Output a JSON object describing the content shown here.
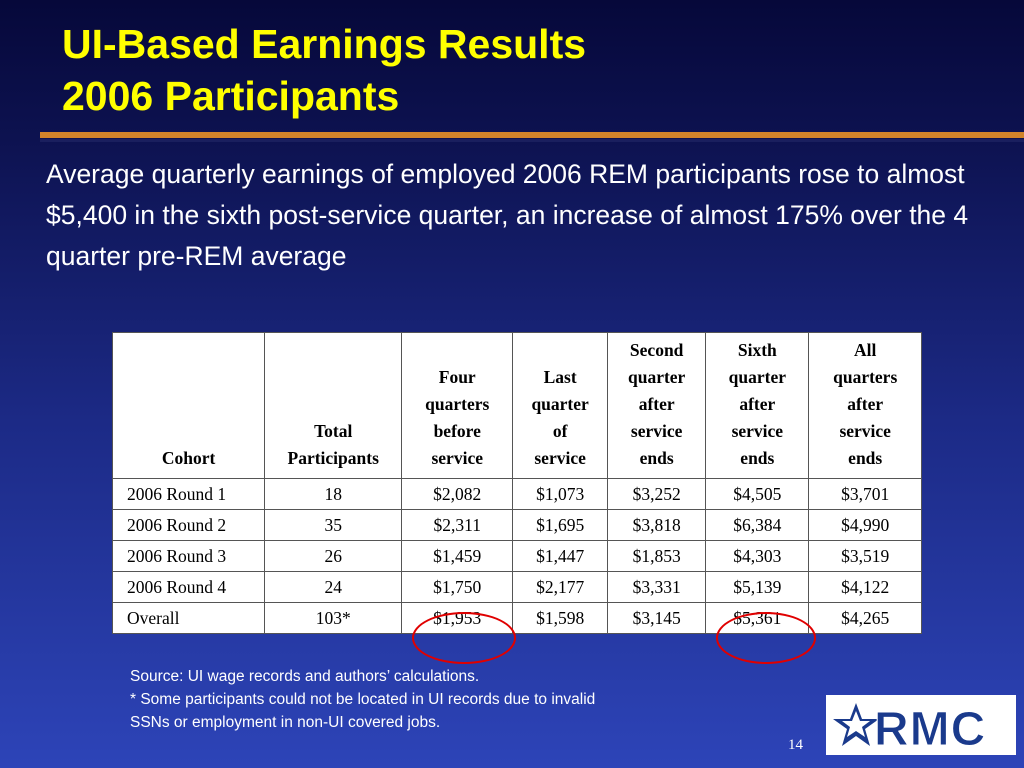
{
  "title": {
    "line1": "UI-Based Earnings Results",
    "line2": "2006 Participants"
  },
  "summary": "Average quarterly earnings of employed 2006 REM participants rose to almost $5,400 in the sixth post-service quarter, an increase of almost 175% over the 4 quarter pre-REM average",
  "table": {
    "headers": [
      [
        "Cohort"
      ],
      [
        "Total",
        "Participants"
      ],
      [
        "Four",
        "quarters",
        "before",
        "service"
      ],
      [
        "Last",
        "quarter",
        "of",
        "service"
      ],
      [
        "Second",
        "quarter",
        "after",
        "service",
        "ends"
      ],
      [
        "Sixth",
        "quarter",
        "after",
        "service",
        "ends"
      ],
      [
        "All",
        "quarters",
        "after",
        "service",
        "ends"
      ]
    ],
    "rows": [
      [
        "2006 Round 1",
        "18",
        "$2,082",
        "$1,073",
        "$3,252",
        "$4,505",
        "$3,701"
      ],
      [
        "2006 Round 2",
        "35",
        "$2,311",
        "$1,695",
        "$3,818",
        "$6,384",
        "$4,990"
      ],
      [
        "2006 Round 3",
        "26",
        "$1,459",
        "$1,447",
        "$1,853",
        "$4,303",
        "$3,519"
      ],
      [
        "2006 Round 4",
        "24",
        "$1,750",
        "$2,177",
        "$3,331",
        "$5,139",
        "$4,122"
      ],
      [
        "Overall",
        "103*",
        "$1,953",
        "$1,598",
        "$3,145",
        "$5,361",
        "$4,265"
      ]
    ],
    "highlight_color": "#e00000"
  },
  "footnotes": {
    "source": "Source: UI wage records and authors’ calculations.",
    "note_line1": "* Some participants could not be located in UI records due to invalid",
    "note_line2": "SSNs or employment in non-UI covered jobs."
  },
  "page_number": "14",
  "logo": {
    "text": "RMC",
    "icon": "star-icon",
    "color": "#1a3a8c"
  },
  "colors": {
    "title": "#ffff00",
    "rule": "#d2842a",
    "background_top": "#06083a",
    "background_bottom": "#2d44b8"
  }
}
